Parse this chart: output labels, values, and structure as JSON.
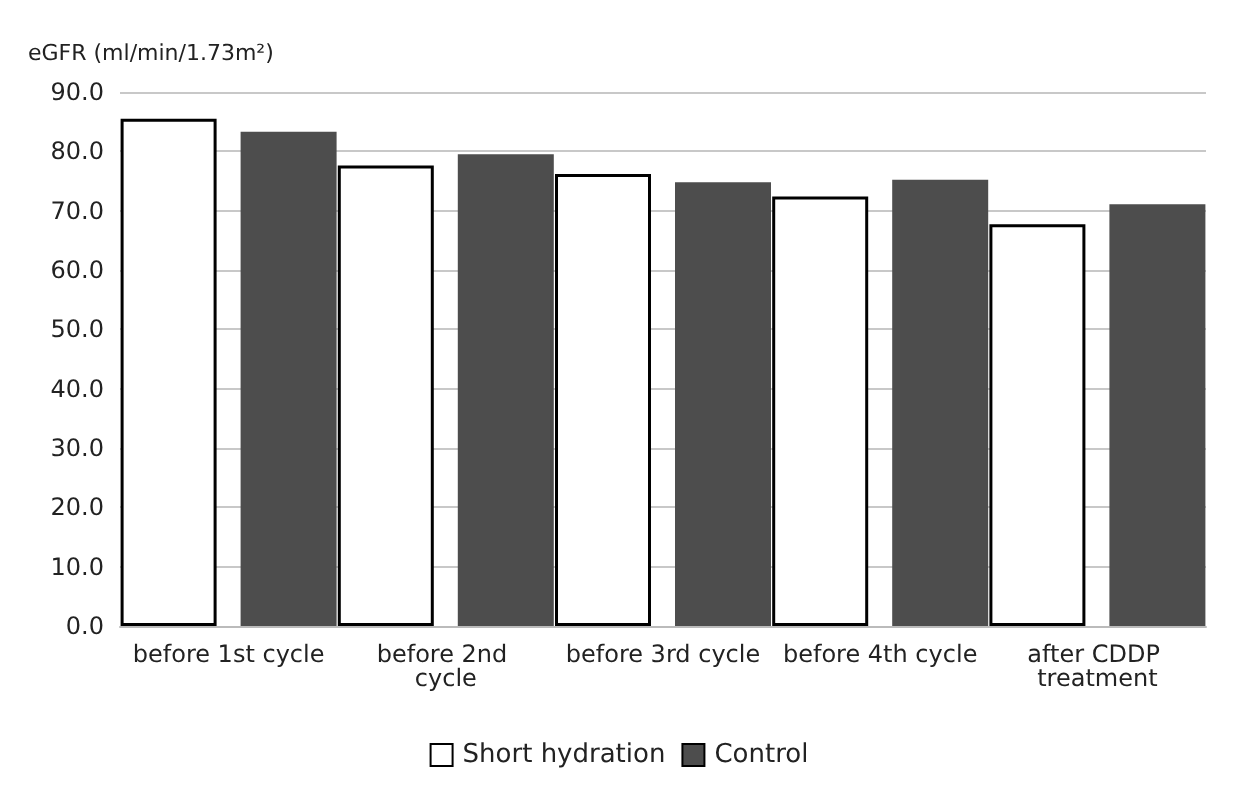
{
  "chart_data": {
    "type": "bar",
    "ylabel": "eGFR (ml/min/1.73m²)",
    "categories": [
      "before 1st cycle",
      "before 2nd cycle",
      "before 3rd cycle",
      "before 4th cycle",
      "after CDDP treatment"
    ],
    "series": [
      {
        "name": "Short hydration",
        "color": "#ffffff",
        "values": [
          85.5,
          77.6,
          76.2,
          72.4,
          67.7
        ]
      },
      {
        "name": "Control",
        "color": "#4d4d4d",
        "values": [
          83.3,
          79.5,
          74.8,
          75.2,
          71.1
        ]
      }
    ],
    "ylim": [
      0,
      90
    ],
    "yticks": [
      {
        "value": 0,
        "label": "0.0"
      },
      {
        "value": 10,
        "label": "10.0"
      },
      {
        "value": 20,
        "label": "20.0"
      },
      {
        "value": 30,
        "label": "30.0"
      },
      {
        "value": 40,
        "label": "40.0"
      },
      {
        "value": 50,
        "label": "50.0"
      },
      {
        "value": 60,
        "label": "60.0"
      },
      {
        "value": 70,
        "label": "70.0"
      },
      {
        "value": 80,
        "label": "80.0"
      },
      {
        "value": 90,
        "label": "90.0"
      }
    ],
    "grid": "y",
    "legend": "bottom"
  }
}
